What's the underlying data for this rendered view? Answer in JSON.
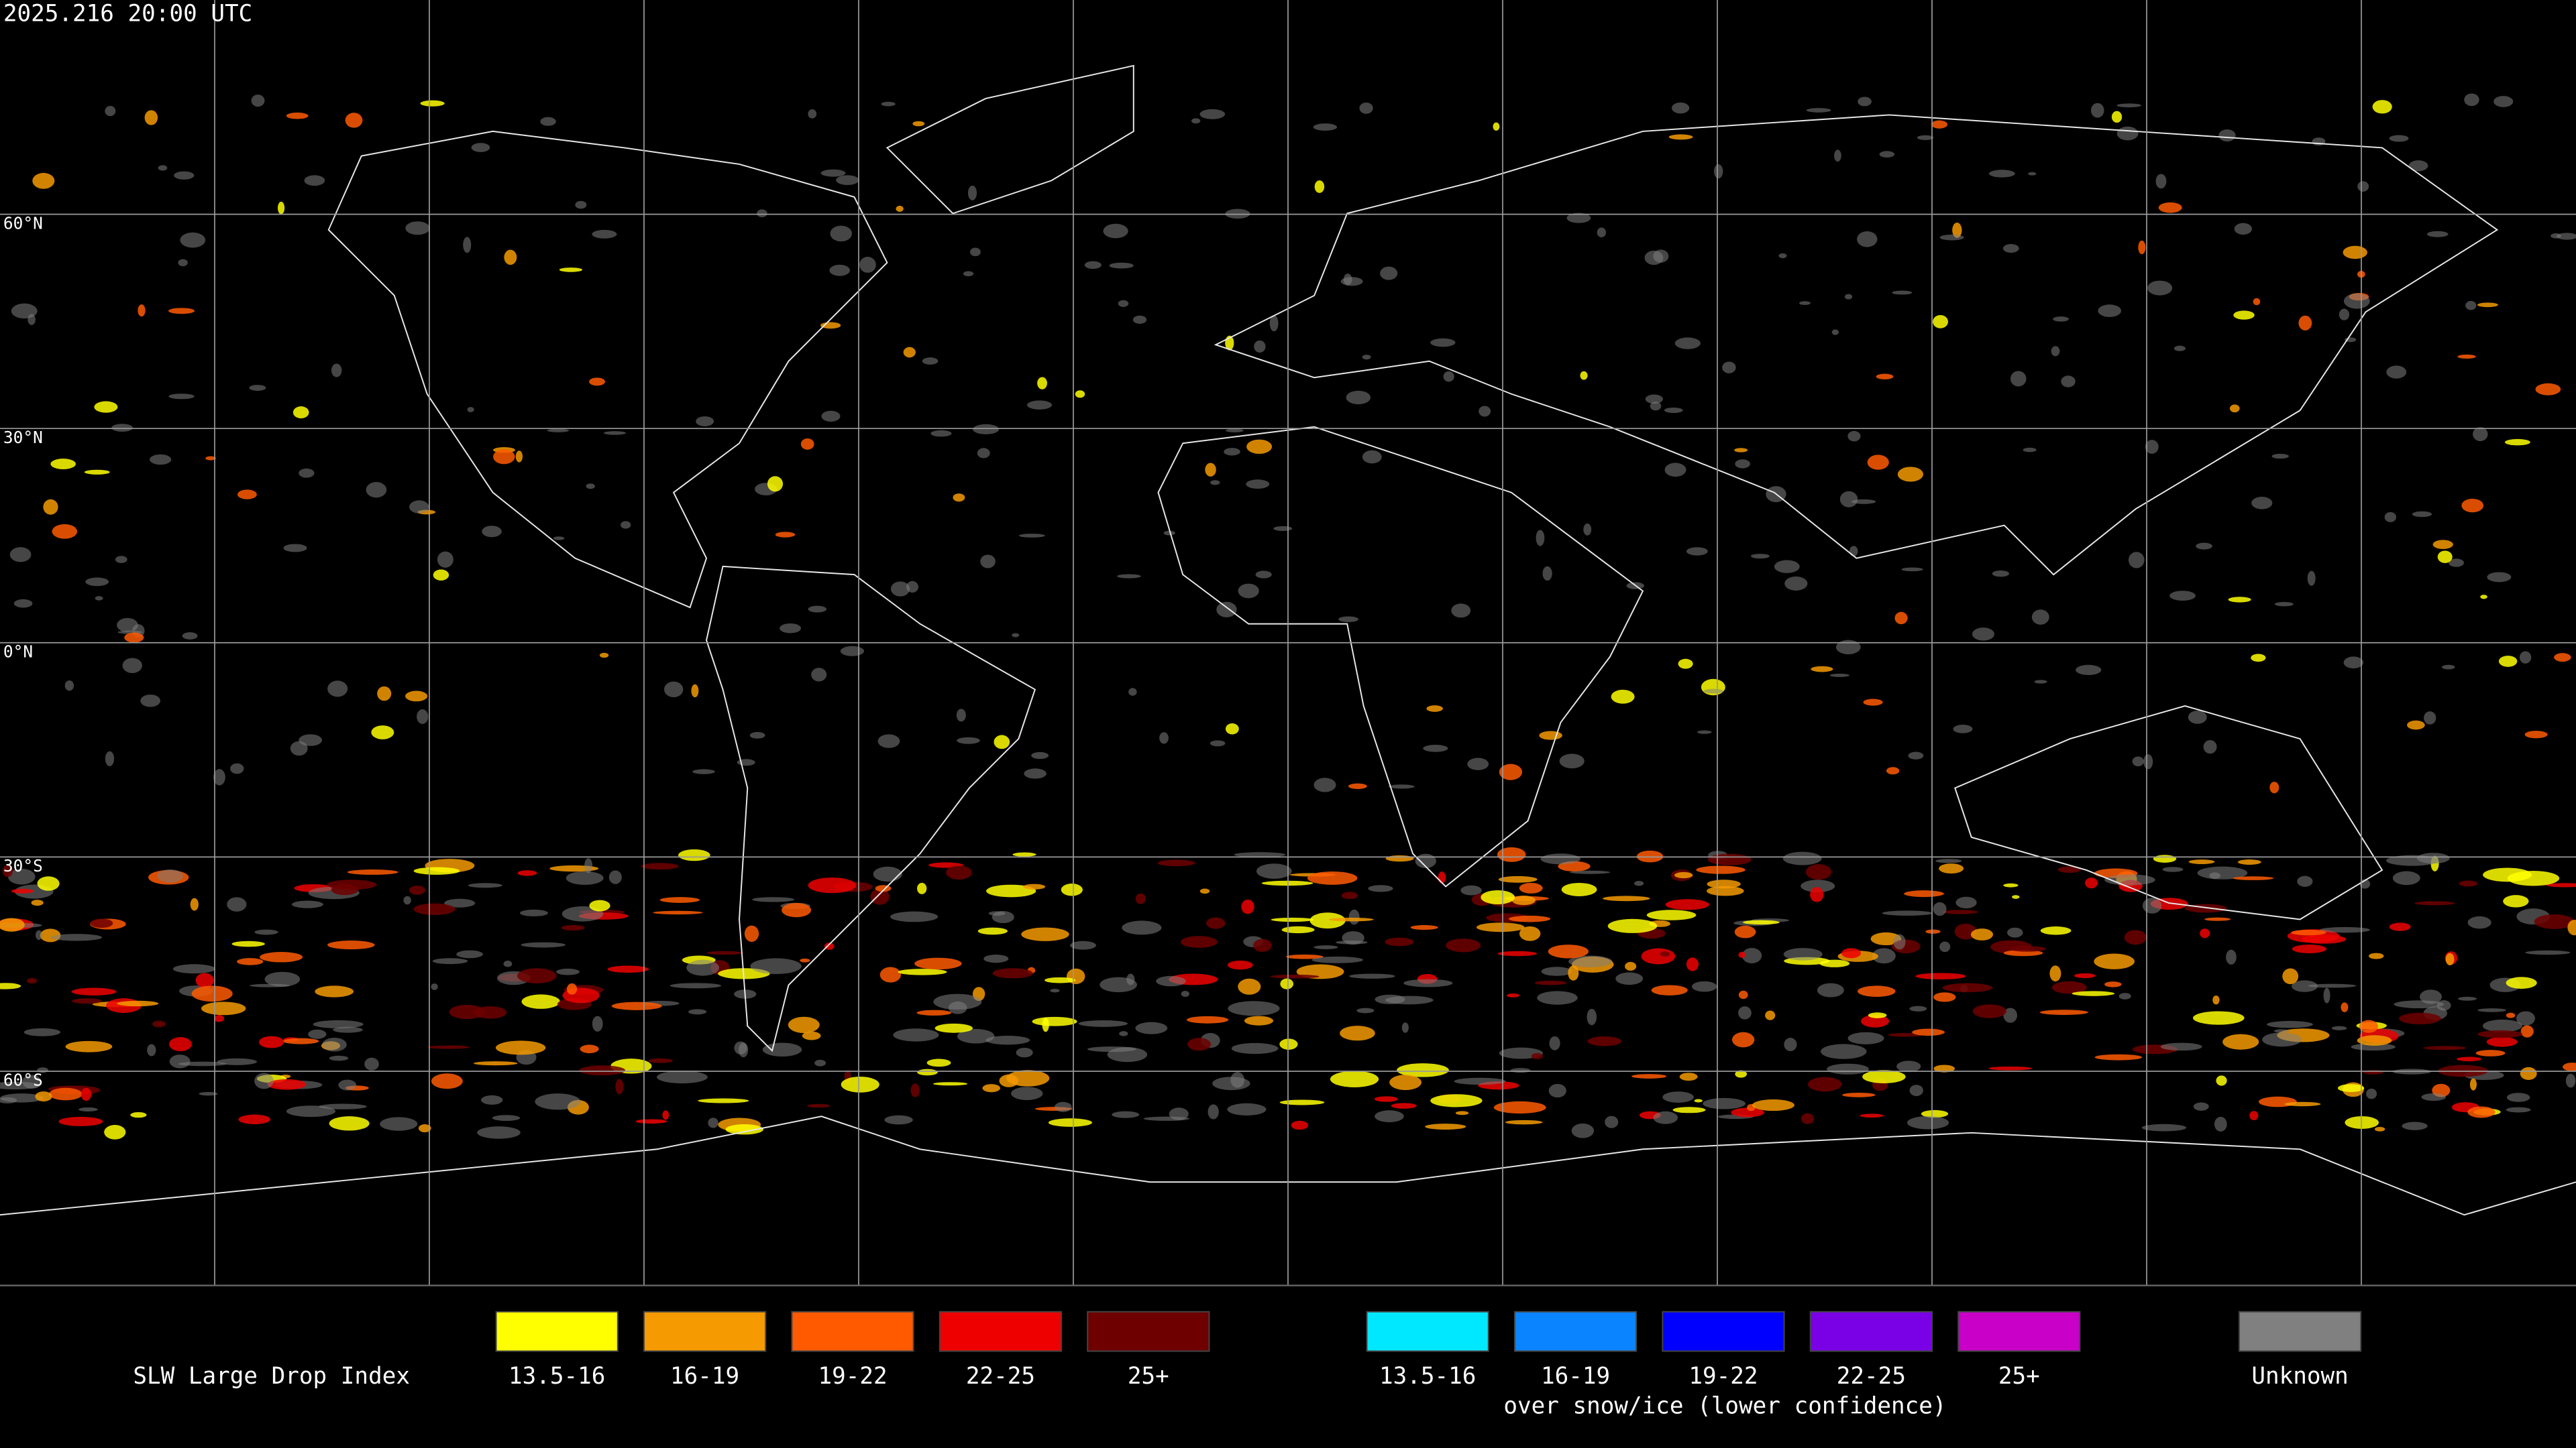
{
  "header": {
    "timestamp": "2025.216 20:00 UTC"
  },
  "map": {
    "latitude_labels": [
      "60°N",
      "30°N",
      "0°N",
      "30°S",
      "60°S"
    ]
  },
  "legend": {
    "title": "SLW Large Drop Index",
    "groups": [
      {
        "items": [
          {
            "label": "13.5-16",
            "color": "#ffff00"
          },
          {
            "label": "16-19",
            "color": "#f59a00"
          },
          {
            "label": "19-22",
            "color": "#ff5a00"
          },
          {
            "label": "22-25",
            "color": "#ee0000"
          },
          {
            "label": "25+",
            "color": "#6e0000"
          }
        ]
      },
      {
        "items": [
          {
            "label": "13.5-16",
            "color": "#00e8ff"
          },
          {
            "label": "16-19",
            "color": "#0a84ff"
          },
          {
            "label": "19-22",
            "color": "#0000ff"
          },
          {
            "label": "22-25",
            "color": "#7a00e6"
          },
          {
            "label": "25+",
            "color": "#c800c8"
          }
        ],
        "caption": "over snow/ice (lower confidence)"
      },
      {
        "items": [
          {
            "label": "Unknown",
            "color": "#808080"
          }
        ]
      }
    ]
  }
}
